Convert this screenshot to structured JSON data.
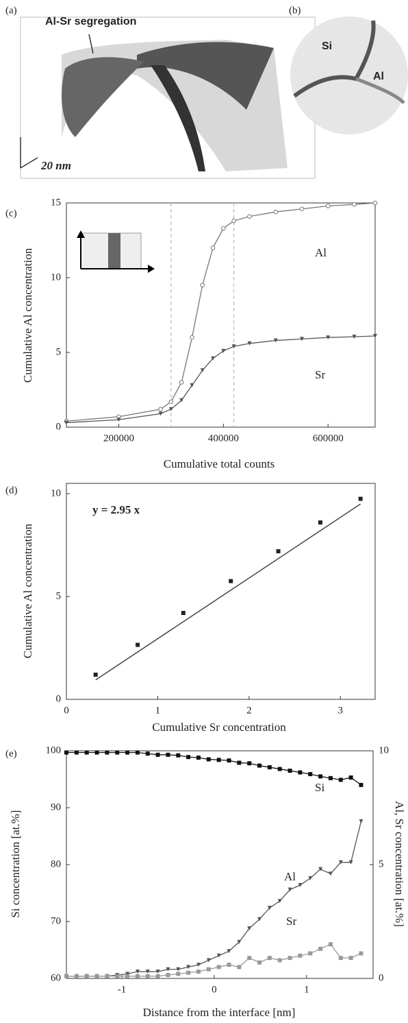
{
  "images": [
    {
      "label": "(a)",
      "annotation": "Al-Sr segregation",
      "scale": "20 nm"
    },
    {
      "label": "(b)",
      "phases": [
        "Si",
        "Al"
      ]
    }
  ],
  "chart_data": [
    {
      "type": "line",
      "label": "(c)",
      "xlabel": "Cumulative total counts",
      "ylabel": "Cumulative Al concentration",
      "x": [
        100000,
        200000,
        280000,
        300000,
        320000,
        340000,
        360000,
        380000,
        400000,
        420000,
        450000,
        500000,
        550000,
        600000,
        650000,
        690000
      ],
      "series": [
        {
          "name": "Al",
          "color": "#777777",
          "marker": "circle",
          "values": [
            0.4,
            0.7,
            1.2,
            1.7,
            3,
            6,
            9.5,
            12,
            13.3,
            13.8,
            14.1,
            14.4,
            14.6,
            14.8,
            14.9,
            15
          ]
        },
        {
          "name": "Sr",
          "color": "#555555",
          "marker": "triangle",
          "values": [
            0.3,
            0.5,
            0.9,
            1.2,
            1.8,
            2.8,
            3.8,
            4.6,
            5.1,
            5.4,
            5.6,
            5.8,
            5.9,
            6.0,
            6.05,
            6.1
          ]
        }
      ],
      "vlines": [
        300000,
        420000
      ],
      "xlim": [
        100000,
        690000
      ],
      "xticks": [
        200000,
        400000,
        600000
      ],
      "ylim": [
        0,
        15
      ],
      "yticks": [
        0,
        5,
        10,
        15
      ]
    },
    {
      "type": "scatter",
      "label": "(d)",
      "xlabel": "Cumulative Sr concentration",
      "ylabel": "Cumulative Al concentration",
      "annotation": "y = 2.95 x",
      "fit": {
        "slope": 2.95
      },
      "x": [
        0.32,
        0.78,
        1.28,
        1.8,
        2.32,
        2.78,
        3.22
      ],
      "series": [
        {
          "color": "#222222",
          "marker": "square",
          "values": [
            1.2,
            2.65,
            4.2,
            5.75,
            7.2,
            8.6,
            9.75
          ]
        }
      ],
      "xlim": [
        0,
        3.38
      ],
      "xticks": [
        0,
        1,
        2,
        3
      ],
      "ylim": [
        0,
        10.5
      ],
      "yticks": [
        0,
        5,
        10
      ]
    },
    {
      "type": "line",
      "label": "(e)",
      "xlabel": "Distance from the interface [nm]",
      "ylabel": "Si concentration [at.%]",
      "y2label": "Al, Sr concentration [at.%]",
      "x": [
        -1.6,
        -1.49,
        -1.38,
        -1.27,
        -1.16,
        -1.05,
        -0.94,
        -0.83,
        -0.72,
        -0.61,
        -0.5,
        -0.39,
        -0.28,
        -0.17,
        -0.06,
        0.05,
        0.16,
        0.27,
        0.38,
        0.49,
        0.6,
        0.71,
        0.82,
        0.93,
        1.04,
        1.15,
        1.26,
        1.37,
        1.48,
        1.59
      ],
      "series": [
        {
          "name": "Si",
          "color": "#111111",
          "marker": "square",
          "values": [
            99.7,
            99.7,
            99.7,
            99.7,
            99.7,
            99.7,
            99.7,
            99.7,
            99.5,
            99.3,
            99.3,
            99.2,
            98.9,
            98.8,
            98.5,
            98.4,
            98.3,
            97.9,
            97.8,
            97.4,
            97.1,
            96.8,
            96.5,
            96.2,
            95.9,
            95.5,
            95.2,
            94.9,
            95.3,
            94.0
          ]
        },
        {
          "name": "Al",
          "color": "#555555",
          "marker": "triangle",
          "axis": "y2",
          "values": [
            0.1,
            0.1,
            0.1,
            0.1,
            0.1,
            0.15,
            0.2,
            0.3,
            0.3,
            0.3,
            0.4,
            0.4,
            0.5,
            0.6,
            0.8,
            1.0,
            1.2,
            1.6,
            2.2,
            2.6,
            3.1,
            3.4,
            3.9,
            4.1,
            4.4,
            4.8,
            4.6,
            5.1,
            5.1,
            6.9
          ]
        },
        {
          "name": "Sr",
          "color": "#999999",
          "marker": "square",
          "axis": "y2",
          "values": [
            0.1,
            0.1,
            0.1,
            0.1,
            0.1,
            0.1,
            0.1,
            0.1,
            0.1,
            0.1,
            0.15,
            0.2,
            0.25,
            0.3,
            0.4,
            0.5,
            0.6,
            0.5,
            0.9,
            0.7,
            0.9,
            0.8,
            0.9,
            1.0,
            1.1,
            1.3,
            1.5,
            0.9,
            0.9,
            1.1
          ]
        }
      ],
      "xlim": [
        -1.6,
        1.72
      ],
      "xticks": [
        -1,
        0,
        1
      ],
      "ylim": [
        60,
        100
      ],
      "yticks": [
        60,
        70,
        80,
        90,
        100
      ],
      "y2lim": [
        0,
        10
      ],
      "y2ticks": [
        0,
        5,
        10
      ]
    }
  ]
}
